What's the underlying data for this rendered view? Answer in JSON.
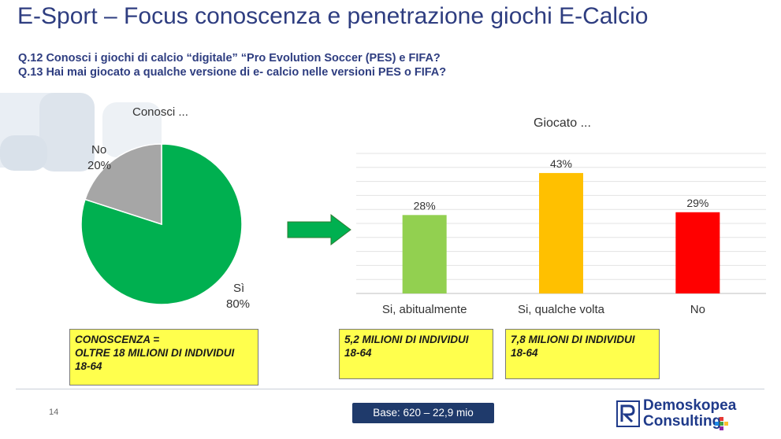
{
  "header": {
    "title": "E-Sport – Focus conoscenza e penetrazione giochi E-Calcio",
    "q12": "Q.12 Conosci i giochi di calcio “digitale” “Pro Evolution Soccer (PES) e FIFA?",
    "q13": "Q.13 Hai mai giocato a qualche versione di e- calcio nelle versioni PES o FIFA?"
  },
  "chart_data": [
    {
      "type": "pie",
      "title": "Conosci ...",
      "slices": [
        {
          "label": "Sì",
          "value": 80,
          "value_label": "80%",
          "color": "#00b050"
        },
        {
          "label": "No",
          "value": 20,
          "value_label": "20%",
          "color": "#a6a6a6"
        }
      ]
    },
    {
      "type": "bar",
      "title": "Giocato ...",
      "categories": [
        "Si, abitualmente",
        "Si, qualche volta",
        "No"
      ],
      "values": [
        28,
        43,
        29
      ],
      "value_labels": [
        "28%",
        "43%",
        "29%"
      ],
      "colors": [
        "#92d050",
        "#ffc000",
        "#ff0000"
      ],
      "ylim": [
        0,
        50
      ],
      "grid": true
    }
  ],
  "boxes": {
    "knowledge": [
      "CONOSCENZA =",
      "OLTRE 18 MILIONI DI INDIVIDUI",
      "18-64"
    ],
    "regular": [
      "5,2 MILIONI DI INDIVIDUI",
      "18-64"
    ],
    "occasional": [
      "7,8 MILIONI DI INDIVIDUI",
      "18-64"
    ]
  },
  "footer": {
    "page_number": "14",
    "base": "Base: 620 – 22,9 mio",
    "logo_line1": "Demoskopea",
    "logo_line2": "Consulting"
  },
  "colors": {
    "title": "#2e3d80",
    "arrow": "#00b050",
    "base_box": "#1f3a6b",
    "highlight_box": "#ffff4d"
  }
}
